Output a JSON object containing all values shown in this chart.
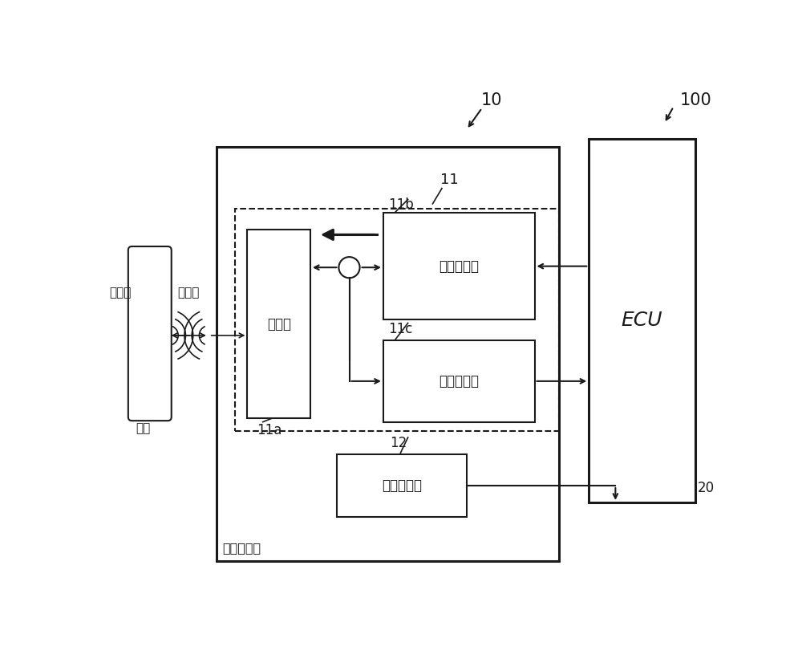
{
  "bg_color": "#ffffff",
  "lc": "#1a1a1a",
  "fig_w": 10.0,
  "fig_h": 8.26,
  "dpi": 100,
  "labels": {
    "n100": "100",
    "n10": "10",
    "n11": "11",
    "n11a": "11a",
    "n11b": "11b",
    "n11c": "11c",
    "n12": "12",
    "n20": "20",
    "obj": "物体",
    "probe": "探查波",
    "reflect": "反射波",
    "transceiver": "收发器",
    "tx": "发送电路部",
    "rx": "接收电路部",
    "tilt": "倒斜传感器",
    "sensor_unit": "传感器单元",
    "ecu": "ECU"
  }
}
